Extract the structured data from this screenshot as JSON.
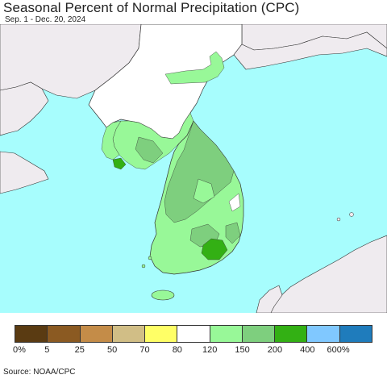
{
  "title": "Seasonal Percent of Normal Precipitation (CPC)",
  "subtitle": "Sep. 1 - Dec. 20, 2024",
  "source": "Source: NOAA/CPC",
  "colors": {
    "ocean": "#a7fdfd",
    "outside_land": "#efebef",
    "neutral_land": "#ffffff",
    "border": "#333333"
  },
  "legend": {
    "colors": [
      "#5a3b12",
      "#8b5a22",
      "#c48c48",
      "#d1be86",
      "#ffff66",
      "#ffffff",
      "#98f898",
      "#7ecf7e",
      "#33b014",
      "#80c8ff",
      "#1f7cbc"
    ],
    "tick_labels": [
      "0%",
      "5",
      "25",
      "50",
      "70",
      "80",
      "120",
      "150",
      "200",
      "400",
      "600%"
    ]
  }
}
